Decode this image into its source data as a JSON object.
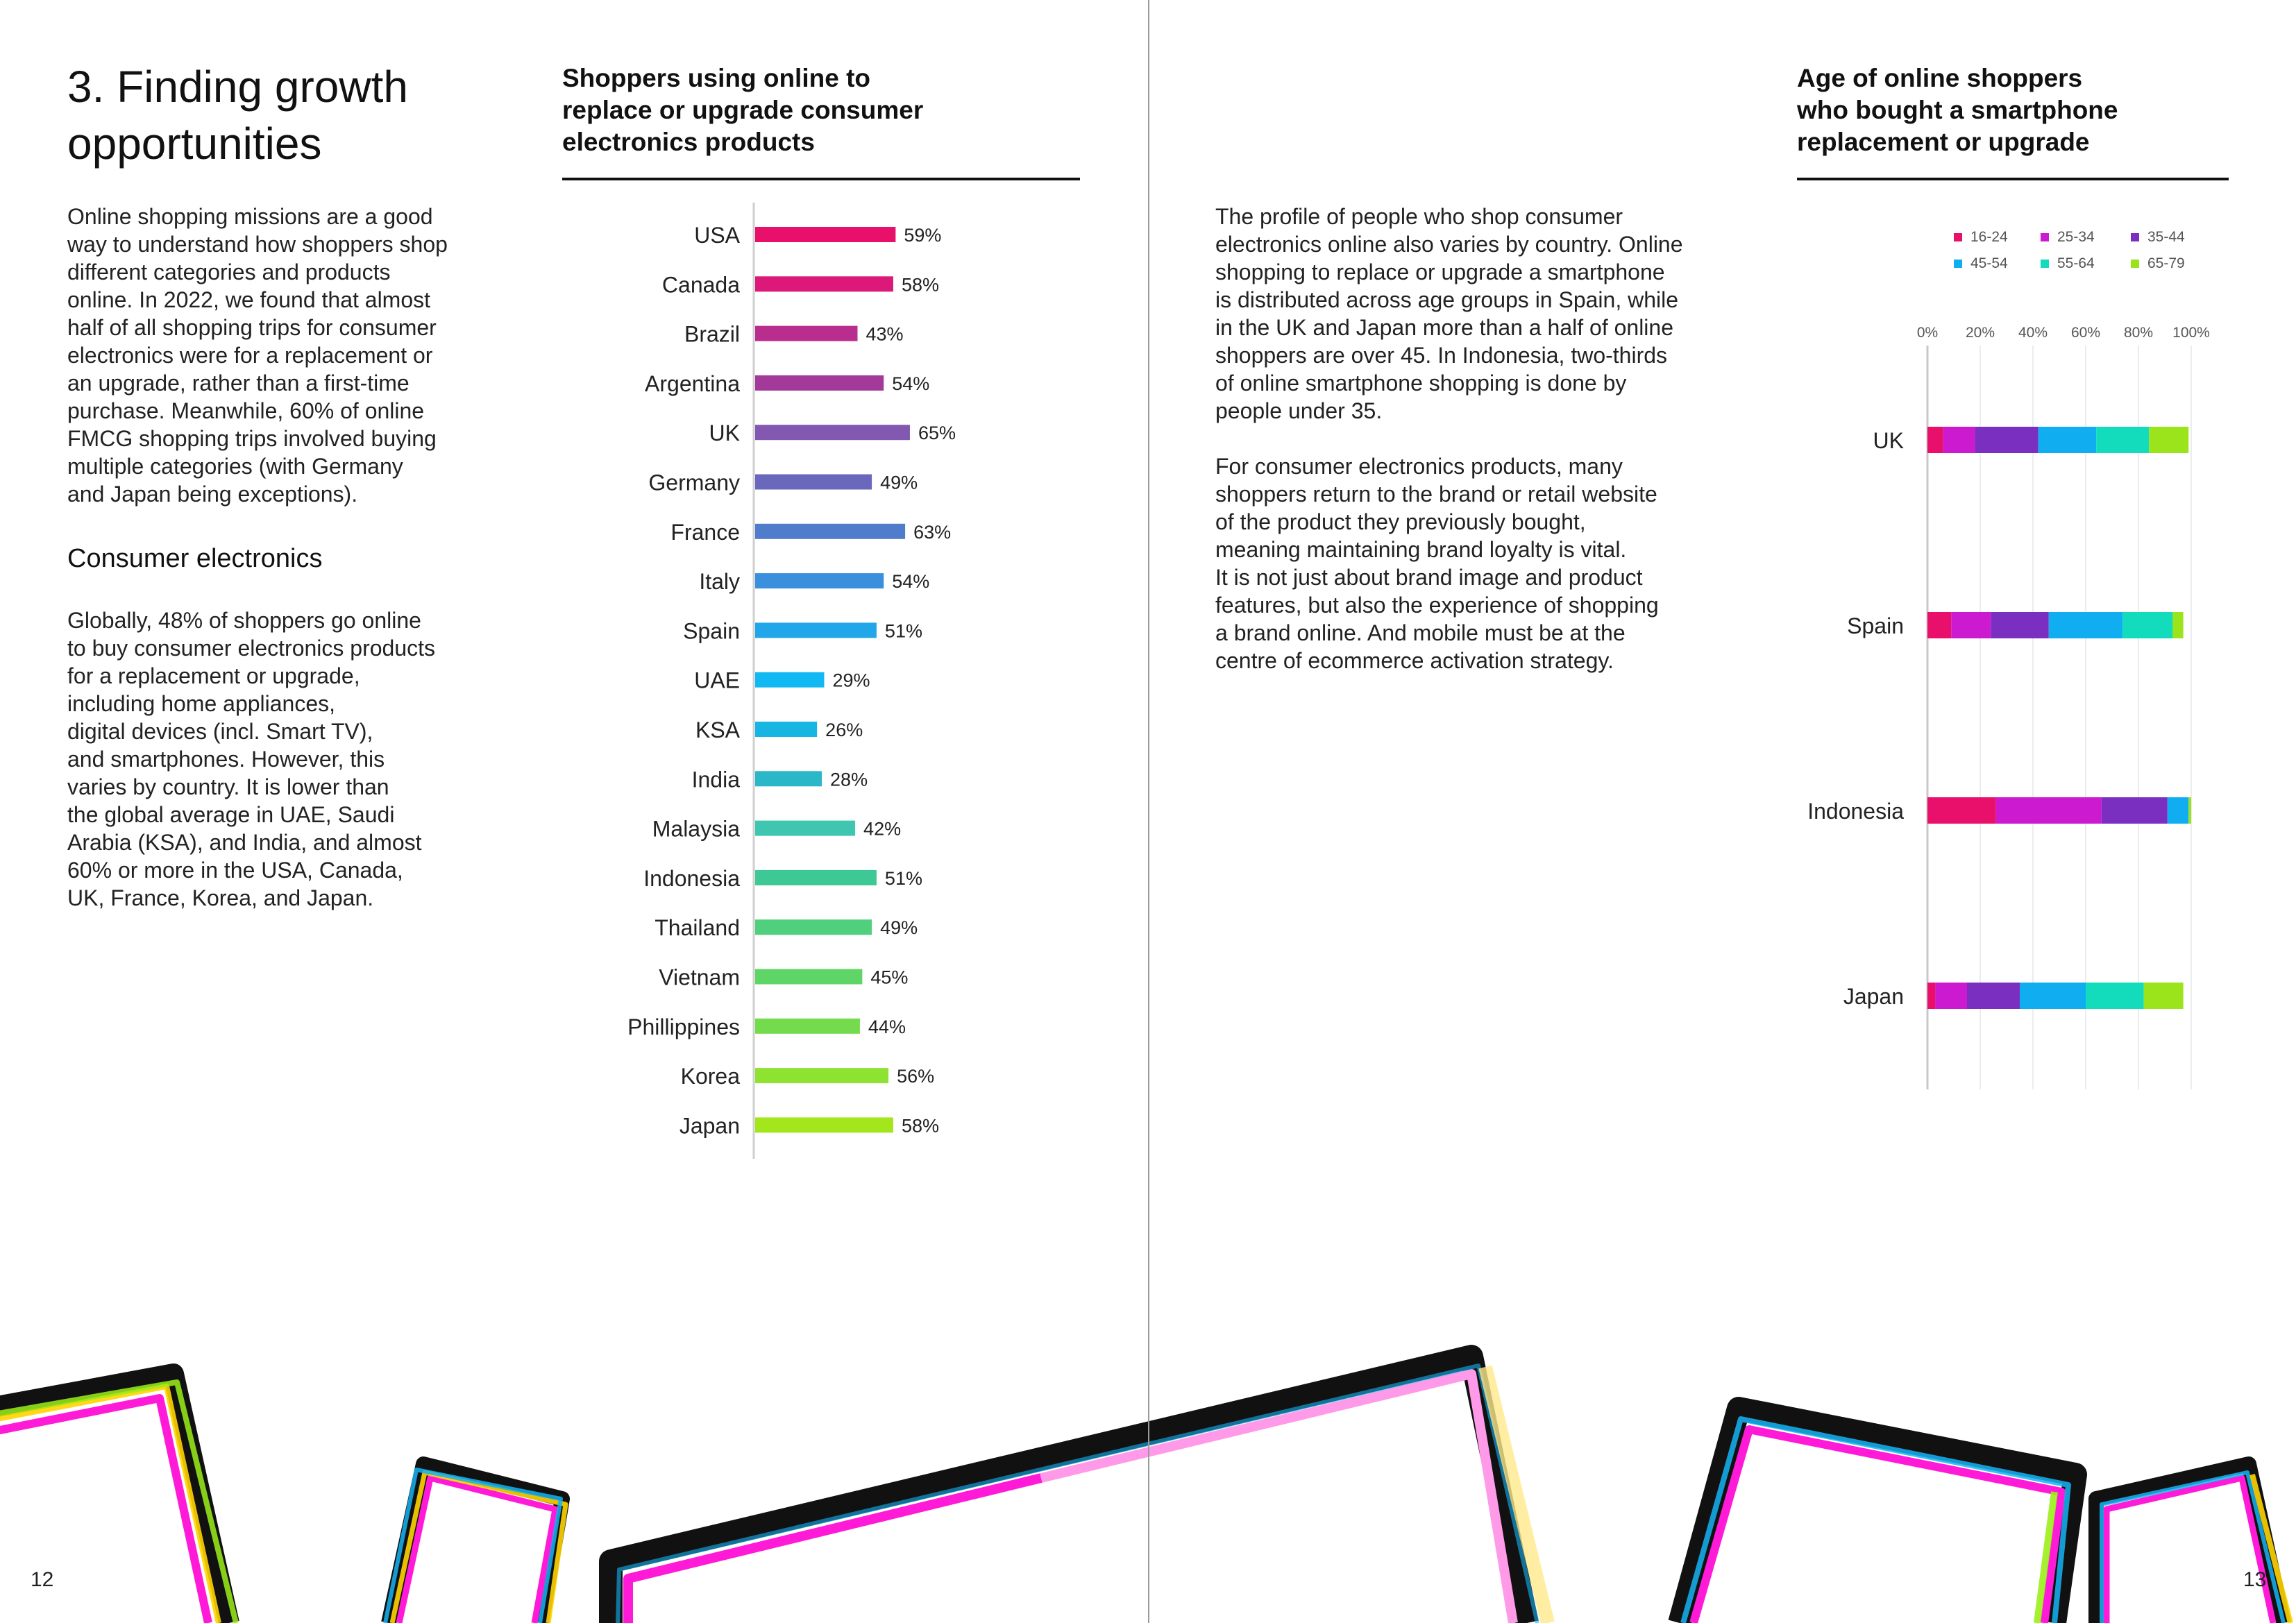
{
  "left_page": {
    "section_title": "3. Finding growth opportunities",
    "intro_paragraph": "Online shopping missions are a good\nway to understand how shoppers shop\ndifferent categories and products\nonline. In 2022, we found that almost\nhalf of all shopping trips for consumer\nelectronics were for a replacement or\nan upgrade, rather than a first-time\npurchase. Meanwhile, 60% of online\nFMCG shopping trips involved buying\nmultiple categories (with Germany\nand Japan being exceptions).",
    "sub_heading": "Consumer electronics",
    "global_paragraph": "Globally, 48% of shoppers go online\nto buy consumer electronics products\nfor a replacement or upgrade,\nincluding home appliances,\ndigital devices (incl. Smart TV),\nand smartphones. However, this\nvaries by country. It is lower than\nthe global average in UAE, Saudi\nArabia (KSA), and India, and almost\n60% or more in the USA, Canada,\nUK, France, Korea, and Japan.",
    "page_number": "12"
  },
  "right_page": {
    "paragraph_1": "The profile of people who shop consumer\nelectronics online also varies by country. Online\nshopping to replace or upgrade a smartphone\nis distributed across age groups in Spain, while\nin the UK and Japan more than a half of online\nshoppers are over 45. In Indonesia, two-thirds\nof online smartphone shopping is done by\npeople under 35.",
    "paragraph_2": "For consumer electronics products, many\nshoppers return to the brand or retail website\nof the product they previously bought,\nmeaning maintaining brand loyalty is vital.\nIt is not just about brand image and product\nfeatures, but also the experience of shopping\na brand online. And mobile must be at the\ncentre of ecommerce activation strategy.",
    "page_number": "13"
  },
  "chart_data": [
    {
      "type": "bar",
      "orientation": "horizontal",
      "title": "Shoppers using online to\nreplace or upgrade consumer\nelectronics products",
      "categories": [
        "USA",
        "Canada",
        "Brazil",
        "Argentina",
        "UK",
        "Germany",
        "France",
        "Italy",
        "Spain",
        "UAE",
        "KSA",
        "India",
        "Malaysia",
        "Indonesia",
        "Thailand",
        "Vietnam",
        "Phillippines",
        "Korea",
        "Japan"
      ],
      "values": [
        59,
        58,
        43,
        54,
        65,
        49,
        63,
        54,
        51,
        29,
        26,
        28,
        42,
        51,
        49,
        45,
        44,
        56,
        58
      ],
      "value_labels": [
        "59%",
        "58%",
        "43%",
        "54%",
        "65%",
        "49%",
        "63%",
        "54%",
        "51%",
        "29%",
        "26%",
        "28%",
        "42%",
        "51%",
        "49%",
        "45%",
        "44%",
        "56%",
        "58%"
      ],
      "colors": [
        "#e8106a",
        "#dc1878",
        "#b82d8d",
        "#a33a9a",
        "#8258b0",
        "#6a68bc",
        "#4f7ccb",
        "#3a90dc",
        "#22a6ea",
        "#12b8f2",
        "#17b6e2",
        "#2ab8c8",
        "#3ec6b0",
        "#3ec896",
        "#50d07c",
        "#5ed566",
        "#74dc4c",
        "#8ee232",
        "#a3e61c"
      ],
      "xlim": [
        0,
        100
      ]
    },
    {
      "type": "bar",
      "orientation": "horizontal",
      "stacked": true,
      "title": "Age of online shoppers\nwho bought a smartphone\nreplacement or upgrade",
      "categories": [
        "UK",
        "Spain",
        "Indonesia",
        "Japan"
      ],
      "series": [
        {
          "name": "16-24",
          "color": "#e8106a",
          "values": [
            6,
            9,
            26,
            3
          ]
        },
        {
          "name": "25-34",
          "color": "#cc1ad0",
          "values": [
            12,
            15,
            40,
            12
          ]
        },
        {
          "name": "35-44",
          "color": "#7b2fc0",
          "values": [
            24,
            22,
            25,
            20
          ]
        },
        {
          "name": "45-54",
          "color": "#10aef0",
          "values": [
            22,
            28,
            8,
            25
          ]
        },
        {
          "name": "55-64",
          "color": "#12dcbc",
          "values": [
            20,
            19,
            0,
            22
          ]
        },
        {
          "name": "65-79",
          "color": "#9be31a",
          "values": [
            15,
            4,
            1,
            15
          ]
        }
      ],
      "axis_ticks": [
        "0%",
        "20%",
        "40%",
        "60%",
        "80%",
        "100%"
      ],
      "xlim": [
        0,
        100
      ],
      "legend_position": "top"
    }
  ]
}
